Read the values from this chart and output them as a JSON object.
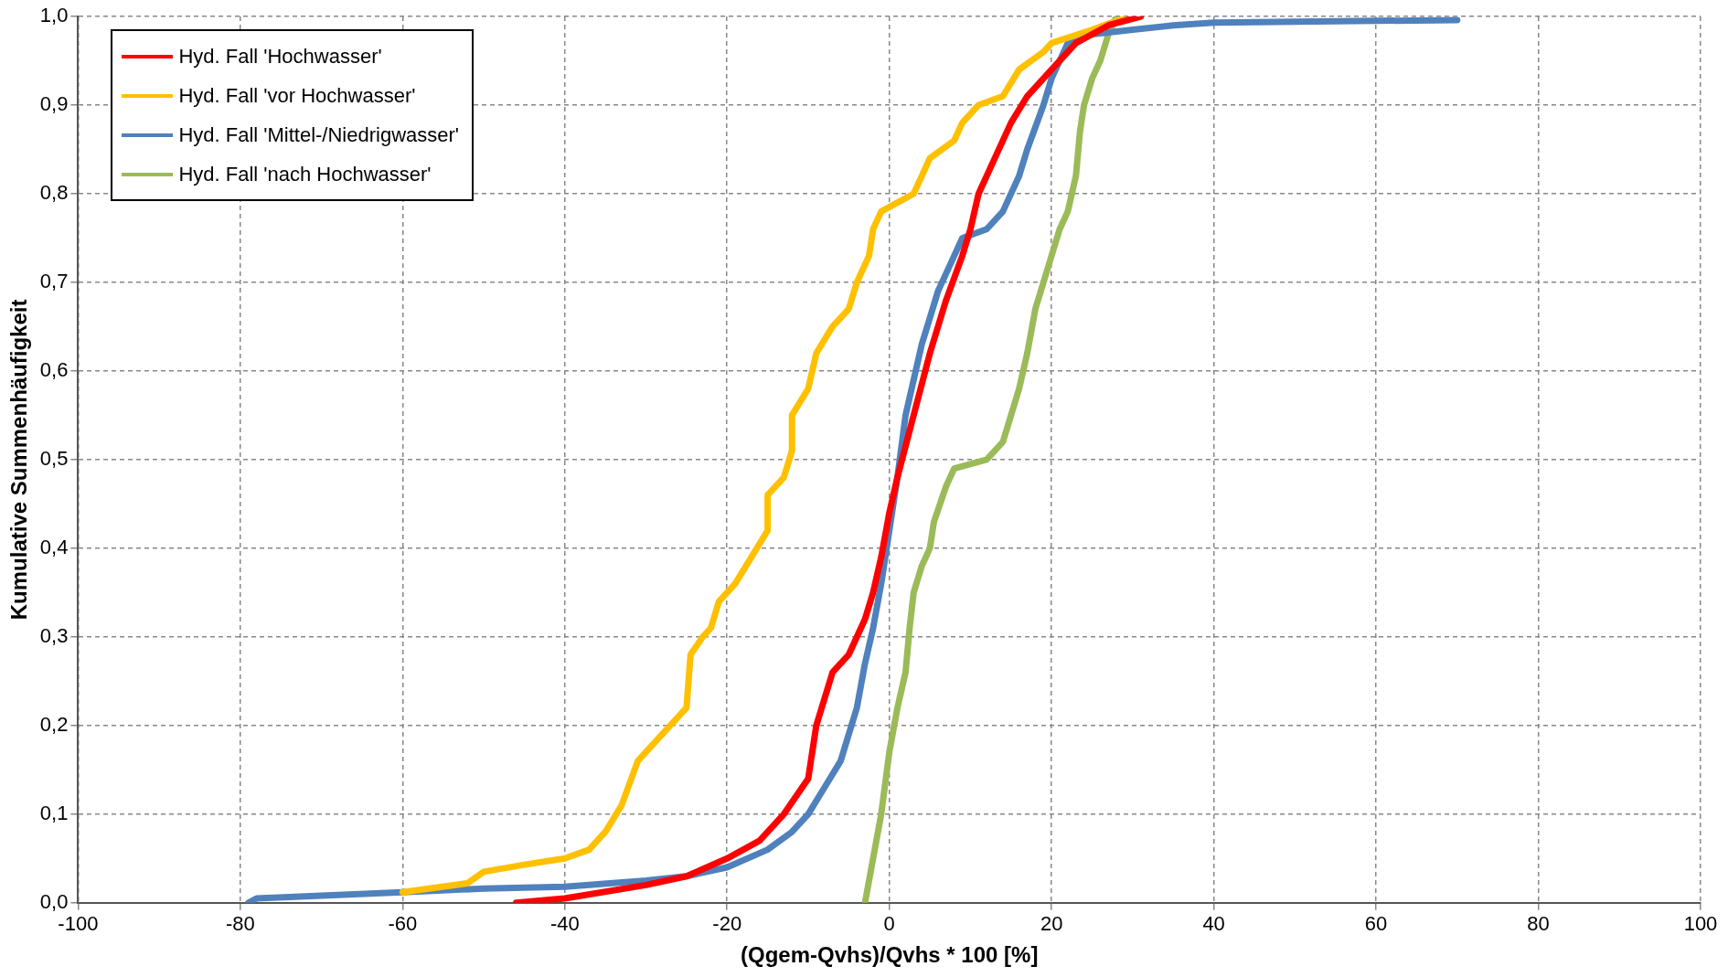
{
  "chart_data": {
    "type": "line",
    "xlabel": "(Qgem-Qvhs)/Qvhs * 100 [%]",
    "ylabel": "Kumulative Summenhäufigkeit",
    "xlim": [
      -100,
      100
    ],
    "xticks": [
      -100,
      -80,
      -60,
      -40,
      -20,
      0,
      20,
      40,
      60,
      80,
      100
    ],
    "ylim": [
      0,
      1
    ],
    "yticks": [
      {
        "value": 0,
        "label": "0,0"
      },
      {
        "value": 0.1,
        "label": "0,1"
      },
      {
        "value": 0.2,
        "label": "0,2"
      },
      {
        "value": 0.3,
        "label": "0,3"
      },
      {
        "value": 0.4,
        "label": "0,4"
      },
      {
        "value": 0.5,
        "label": "0,5"
      },
      {
        "value": 0.6,
        "label": "0,6"
      },
      {
        "value": 0.7,
        "label": "0,7"
      },
      {
        "value": 0.8,
        "label": "0,8"
      },
      {
        "value": 0.9,
        "label": "0,9"
      },
      {
        "value": 1,
        "label": "1,0"
      }
    ],
    "grid": true,
    "legend": "top left",
    "marker": "none",
    "line_style": "solid",
    "series": [
      {
        "name": "Hyd. Fall 'Hochwasser'",
        "color": "#ff0000",
        "x": [
          -46,
          -40,
          -30,
          -25,
          -20,
          -16,
          -13,
          -10,
          -9,
          -8,
          -7,
          -5,
          -3,
          -2,
          -1,
          0,
          1,
          3,
          5,
          7,
          9,
          10,
          11,
          13,
          15,
          17,
          20,
          23,
          27,
          31
        ],
        "values": [
          0,
          0.005,
          0.02,
          0.03,
          0.05,
          0.07,
          0.1,
          0.14,
          0.2,
          0.23,
          0.26,
          0.28,
          0.32,
          0.35,
          0.39,
          0.44,
          0.48,
          0.55,
          0.62,
          0.68,
          0.73,
          0.76,
          0.8,
          0.84,
          0.88,
          0.91,
          0.94,
          0.97,
          0.99,
          1
        ]
      },
      {
        "name": "Hyd. Fall 'vor Hochwasser'",
        "color": "#ffc000",
        "x": [
          -60,
          -52,
          -50,
          -45,
          -40,
          -37,
          -35,
          -33,
          -31,
          -29,
          -26,
          -25,
          -24.5,
          -23,
          -22,
          -21,
          -19,
          -17,
          -15,
          -15,
          -13,
          -12,
          -12,
          -10,
          -9,
          -7,
          -5,
          -4,
          -2.5,
          -2,
          -1,
          3,
          5,
          8,
          9,
          11,
          14,
          16,
          19,
          20,
          25,
          28,
          30
        ],
        "values": [
          0.012,
          0.022,
          0.035,
          0.043,
          0.05,
          0.06,
          0.08,
          0.11,
          0.16,
          0.18,
          0.21,
          0.22,
          0.28,
          0.3,
          0.31,
          0.34,
          0.36,
          0.39,
          0.42,
          0.46,
          0.48,
          0.51,
          0.55,
          0.58,
          0.62,
          0.65,
          0.67,
          0.7,
          0.73,
          0.76,
          0.78,
          0.8,
          0.84,
          0.86,
          0.88,
          0.9,
          0.91,
          0.94,
          0.96,
          0.97,
          0.985,
          0.995,
          1
        ]
      },
      {
        "name": "Hyd. Fall 'Mittel-/Niedrigwasser'",
        "color": "#4f81bd",
        "x": [
          -79,
          -78,
          -60,
          -50,
          -40,
          -30,
          -25,
          -20,
          -15,
          -12,
          -10,
          -8,
          -6,
          -5,
          -4,
          -3,
          -2,
          -1,
          0,
          1,
          2,
          4,
          6,
          8,
          9,
          12,
          14,
          16,
          17,
          19,
          20,
          22,
          25,
          30,
          35,
          40,
          60,
          70
        ],
        "values": [
          0,
          0.005,
          0.012,
          0.016,
          0.018,
          0.025,
          0.03,
          0.04,
          0.06,
          0.08,
          0.1,
          0.13,
          0.16,
          0.19,
          0.22,
          0.27,
          0.31,
          0.36,
          0.42,
          0.48,
          0.55,
          0.63,
          0.69,
          0.73,
          0.75,
          0.76,
          0.78,
          0.82,
          0.85,
          0.9,
          0.93,
          0.97,
          0.98,
          0.985,
          0.99,
          0.993,
          0.995,
          0.996
        ]
      },
      {
        "name": "Hyd. Fall 'nach Hochwasser'",
        "color": "#9bbb59",
        "x": [
          -3,
          -2,
          -1,
          0,
          1,
          2,
          2.5,
          3,
          4,
          5,
          5.5,
          7,
          8,
          12,
          14,
          15,
          16,
          17,
          18,
          19,
          20,
          21,
          22,
          23,
          23.5,
          24,
          25,
          26,
          27,
          28
        ],
        "values": [
          0,
          0.05,
          0.1,
          0.17,
          0.22,
          0.26,
          0.31,
          0.35,
          0.38,
          0.4,
          0.43,
          0.47,
          0.49,
          0.5,
          0.52,
          0.55,
          0.58,
          0.62,
          0.67,
          0.7,
          0.73,
          0.76,
          0.78,
          0.82,
          0.87,
          0.9,
          0.93,
          0.95,
          0.98,
          1
        ]
      }
    ]
  }
}
